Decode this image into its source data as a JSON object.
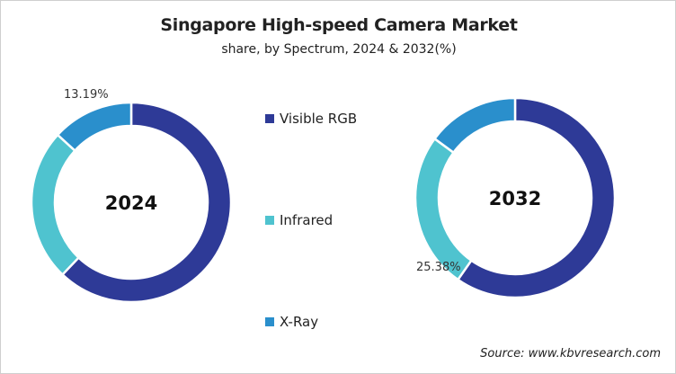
{
  "chart_data": [
    {
      "type": "pie",
      "donut": true,
      "title": "Singapore High-speed Camera Market",
      "subtitle": "share, by Spectrum, 2024 & 2032(%)",
      "center_label": "2024",
      "categories": [
        "Visible RGB",
        "Infrared",
        "X-Ray"
      ],
      "values": [
        62.1,
        24.71,
        13.19
      ],
      "data_labels": {
        "X-Ray": "13.19%"
      }
    },
    {
      "type": "pie",
      "donut": true,
      "center_label": "2032",
      "categories": [
        "Visible RGB",
        "Infrared",
        "X-Ray"
      ],
      "values": [
        59.7,
        25.38,
        14.92
      ],
      "data_labels": {
        "Infrared": "25.38%"
      }
    }
  ],
  "legend": {
    "placement": "center",
    "items": [
      {
        "label": "Visible RGB",
        "color": "#2e3a97"
      },
      {
        "label": "Infrared",
        "color": "#4fc3cf"
      },
      {
        "label": "X-Ray",
        "color": "#2a8fcc"
      }
    ]
  },
  "source": "Source: www.kbvresearch.com"
}
